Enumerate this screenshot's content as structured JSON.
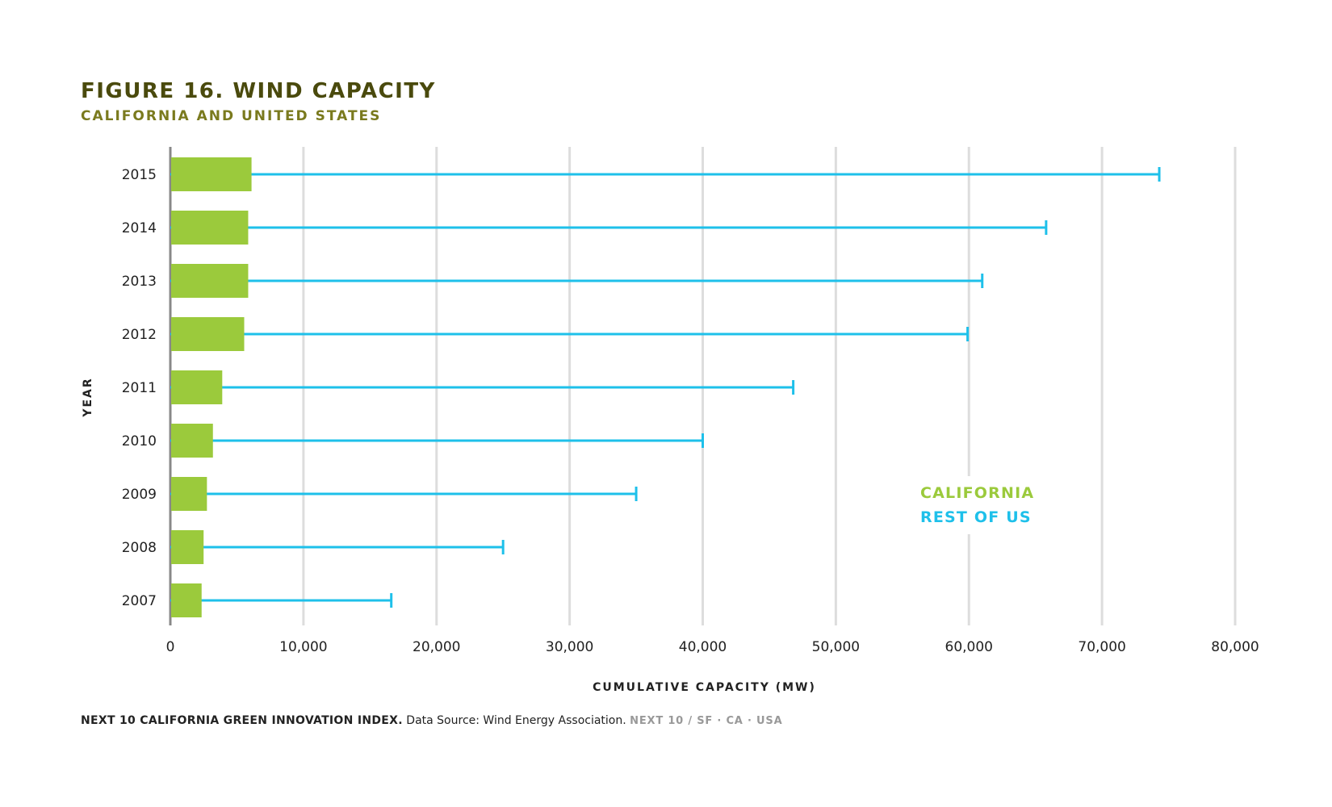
{
  "title": "FIGURE 16. WIND CAPACITY",
  "subtitle": "CALIFORNIA AND UNITED STATES",
  "footer": {
    "source_bold": "NEXT 10 CALIFORNIA GREEN INNOVATION INDEX.",
    "source_text": "Data Source: Wind Energy Association.",
    "brand": "NEXT 10  /  SF · CA · USA"
  },
  "chart_data": {
    "type": "bar",
    "orientation": "horizontal",
    "title": "FIGURE 16. WIND CAPACITY",
    "subtitle": "CALIFORNIA AND UNITED STATES",
    "xlabel": "CUMULATIVE CAPACITY (MW)",
    "ylabel": "YEAR",
    "xlim": [
      0,
      80000
    ],
    "x_ticks": [
      0,
      10000,
      20000,
      30000,
      40000,
      50000,
      60000,
      70000,
      80000
    ],
    "x_tick_labels": [
      "0",
      "10,000",
      "20,000",
      "30,000",
      "40,000",
      "50,000",
      "60,000",
      "70,000",
      "80,000"
    ],
    "grid": "vertical",
    "legend_position": "right",
    "categories": [
      "2015",
      "2014",
      "2013",
      "2012",
      "2011",
      "2010",
      "2009",
      "2008",
      "2007"
    ],
    "series": [
      {
        "name": "CALIFORNIA",
        "color": "#9bca3c",
        "values": [
          6100,
          5850,
          5850,
          5550,
          3900,
          3200,
          2750,
          2500,
          2350
        ]
      },
      {
        "name": "REST OF US",
        "color": "#1ec0ea",
        "values": [
          74300,
          65800,
          61000,
          59900,
          46800,
          40000,
          35000,
          25000,
          16600
        ]
      }
    ]
  }
}
